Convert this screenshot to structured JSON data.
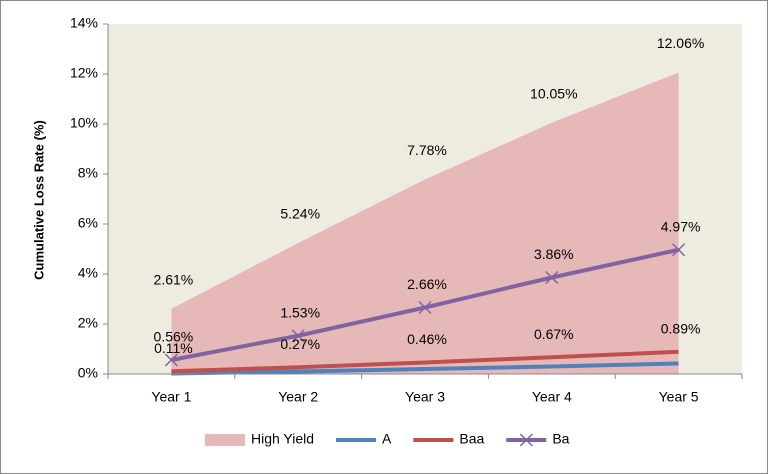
{
  "chart_data": {
    "type": "line",
    "y_label": "Cumulative Loss Rate (%)",
    "categories": [
      "Year 1",
      "Year 2",
      "Year 3",
      "Year 4",
      "Year 5"
    ],
    "series": [
      {
        "name": "High Yield",
        "kind": "area",
        "color": "#e6b9b8",
        "values": [
          2.61,
          5.24,
          7.78,
          10.05,
          12.06
        ],
        "value_labels": [
          "2.61%",
          "5.24%",
          "7.78%",
          "10.05%",
          "12.06%"
        ]
      },
      {
        "name": "A",
        "kind": "line",
        "color": "#4f81bd",
        "values": [
          0.02,
          0.1,
          0.2,
          0.3,
          0.42
        ]
      },
      {
        "name": "Baa",
        "kind": "line",
        "color": "#c0504d",
        "values": [
          0.11,
          0.27,
          0.46,
          0.67,
          0.89
        ],
        "value_labels": [
          "0.11%",
          "0.27%",
          "0.46%",
          "0.67%",
          "0.89%"
        ]
      },
      {
        "name": "Ba",
        "kind": "line",
        "marker": "x",
        "color": "#8064a2",
        "values": [
          0.56,
          1.53,
          2.66,
          3.86,
          4.97
        ],
        "value_labels": [
          "0.56%",
          "1.53%",
          "2.66%",
          "3.86%",
          "4.97%"
        ]
      }
    ],
    "ylim": [
      0,
      14
    ],
    "yticks": [
      {
        "value": 0,
        "label": "0%"
      },
      {
        "value": 2,
        "label": "2%"
      },
      {
        "value": 4,
        "label": "4%"
      },
      {
        "value": 6,
        "label": "6%"
      },
      {
        "value": 8,
        "label": "8%"
      },
      {
        "value": 10,
        "label": "10%"
      },
      {
        "value": 12,
        "label": "12%"
      },
      {
        "value": 14,
        "label": "14%"
      }
    ],
    "plot_background": "#eeece1"
  }
}
